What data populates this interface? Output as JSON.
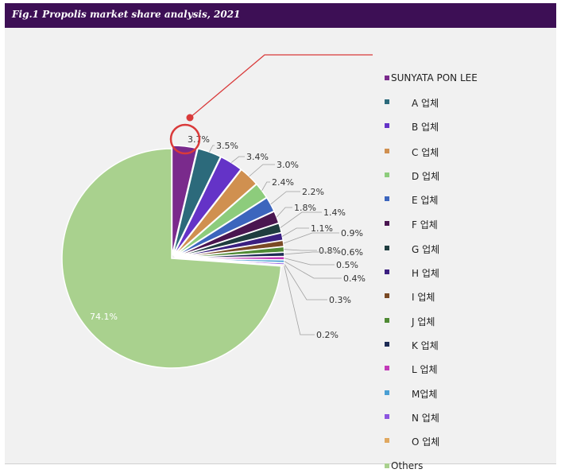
{
  "header": {
    "title": "Fig.1  Propolis market share analysis, 2021"
  },
  "chart_data": {
    "type": "pie",
    "title": "Fig.1  Propolis market share analysis, 2021",
    "slices": [
      {
        "label": "SUNYATA PON LEE",
        "value": 3.7,
        "display": "3.7%",
        "color": "#7a2a8c"
      },
      {
        "label": "A 업체",
        "value": 3.5,
        "display": "3.5%",
        "color": "#2c6a7b"
      },
      {
        "label": "B 업체",
        "value": 3.4,
        "display": "3.4%",
        "color": "#6433c7"
      },
      {
        "label": "C 업체",
        "value": 3.0,
        "display": "3.0%",
        "color": "#d09050"
      },
      {
        "label": "D 업체",
        "value": 2.4,
        "display": "2.4%",
        "color": "#8dcc7c"
      },
      {
        "label": "E 업체",
        "value": 2.2,
        "display": "2.2%",
        "color": "#3c65bd"
      },
      {
        "label": "F 업체",
        "value": 1.8,
        "display": "1.8%",
        "color": "#4a1650"
      },
      {
        "label": "G 업체",
        "value": 1.4,
        "display": "1.4%",
        "color": "#1f3d3f"
      },
      {
        "label": "H 업체",
        "value": 1.1,
        "display": "1.1%",
        "color": "#3b1f80"
      },
      {
        "label": "I 업체",
        "value": 0.9,
        "display": "0.9%",
        "color": "#7a4a25"
      },
      {
        "label": "J 업체",
        "value": 0.8,
        "display": "0.8%",
        "color": "#4f8a34"
      },
      {
        "label": "K 업체",
        "value": 0.6,
        "display": "0.6%",
        "color": "#1e2c55"
      },
      {
        "label": "L 업체",
        "value": 0.5,
        "display": "0.5%",
        "color": "#c23ab8"
      },
      {
        "label": "M업체",
        "value": 0.4,
        "display": "0.4%",
        "color": "#4a9fd3"
      },
      {
        "label": "N 업체",
        "value": 0.3,
        "display": "0.3%",
        "color": "#8c55e0"
      },
      {
        "label": "O 업체",
        "value": 0.2,
        "display": "0.2%",
        "color": "#e0a860"
      },
      {
        "label": "Others",
        "value": 74.1,
        "display": "74.1%",
        "color": "#a9d18e"
      }
    ],
    "legend_position": "right",
    "highlight": {
      "label": "SUNYATA PON LEE",
      "color": "#d93a3a"
    }
  }
}
